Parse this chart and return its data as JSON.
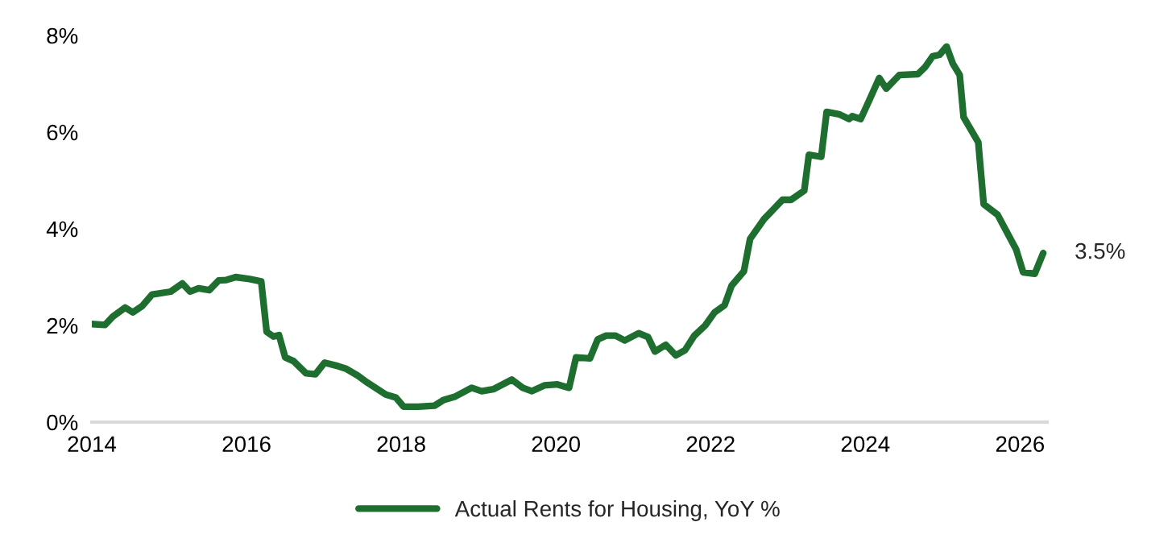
{
  "chart_data": {
    "type": "line",
    "x": [
      2014.0,
      2014.17,
      2014.27,
      2014.43,
      2014.53,
      2014.65,
      2014.78,
      2015.02,
      2015.17,
      2015.27,
      2015.38,
      2015.52,
      2015.64,
      2015.74,
      2015.86,
      2016.04,
      2016.19,
      2016.26,
      2016.35,
      2016.42,
      2016.5,
      2016.61,
      2016.77,
      2016.89,
      2017.01,
      2017.18,
      2017.28,
      2017.44,
      2017.56,
      2017.8,
      2017.93,
      2018.03,
      2018.22,
      2018.43,
      2018.55,
      2018.7,
      2018.91,
      2019.04,
      2019.19,
      2019.43,
      2019.57,
      2019.69,
      2019.85,
      2020.02,
      2020.17,
      2020.26,
      2020.44,
      2020.54,
      2020.65,
      2020.77,
      2020.89,
      2021.07,
      2021.19,
      2021.28,
      2021.42,
      2021.55,
      2021.67,
      2021.79,
      2021.93,
      2022.05,
      2022.18,
      2022.27,
      2022.43,
      2022.51,
      2022.69,
      2022.93,
      2023.04,
      2023.21,
      2023.27,
      2023.43,
      2023.5,
      2023.66,
      2023.79,
      2023.83,
      2023.94,
      2024.04,
      2024.18,
      2024.27,
      2024.44,
      2024.68,
      2024.77,
      2024.87,
      2024.96,
      2025.05,
      2025.13,
      2025.22,
      2025.27,
      2025.46,
      2025.53,
      2025.71,
      2025.95,
      2026.04,
      2026.19,
      2026.3
    ],
    "series": [
      {
        "name": "Actual Rents for Housing, YoY %",
        "color": "#1e6e30",
        "values": [
          2.03,
          2.01,
          2.18,
          2.37,
          2.27,
          2.4,
          2.64,
          2.7,
          2.87,
          2.7,
          2.77,
          2.73,
          2.93,
          2.94,
          3.0,
          2.96,
          2.91,
          1.87,
          1.77,
          1.8,
          1.34,
          1.26,
          1.01,
          0.99,
          1.23,
          1.16,
          1.11,
          0.96,
          0.82,
          0.57,
          0.51,
          0.32,
          0.32,
          0.34,
          0.46,
          0.53,
          0.71,
          0.64,
          0.68,
          0.88,
          0.71,
          0.64,
          0.76,
          0.78,
          0.71,
          1.34,
          1.32,
          1.71,
          1.79,
          1.79,
          1.69,
          1.84,
          1.76,
          1.46,
          1.6,
          1.38,
          1.49,
          1.79,
          2.0,
          2.27,
          2.42,
          2.82,
          3.12,
          3.79,
          4.2,
          4.6,
          4.6,
          4.79,
          5.53,
          5.49,
          6.42,
          6.37,
          6.27,
          6.33,
          6.27,
          6.62,
          7.12,
          6.9,
          7.18,
          7.2,
          7.34,
          7.57,
          7.6,
          7.77,
          7.42,
          7.18,
          6.31,
          5.79,
          4.51,
          4.29,
          3.57,
          3.1,
          3.07,
          3.5
        ]
      }
    ],
    "xlim": [
      2014,
      2026.35
    ],
    "xticks": [
      2014,
      2016,
      2018,
      2020,
      2022,
      2024,
      2026
    ],
    "ylim": [
      0,
      8
    ],
    "yticks": [
      {
        "value": 0,
        "label": "0%"
      },
      {
        "value": 2,
        "label": "2%"
      },
      {
        "value": 4,
        "label": "4%"
      },
      {
        "value": 6,
        "label": "6%"
      },
      {
        "value": 8,
        "label": "8%"
      }
    ],
    "annotations": [
      {
        "text": "3.5%",
        "x": 2026.3,
        "y": 3.5
      }
    ],
    "grid": false,
    "legend": "bottom",
    "marker": "none",
    "line_style": "solid"
  }
}
